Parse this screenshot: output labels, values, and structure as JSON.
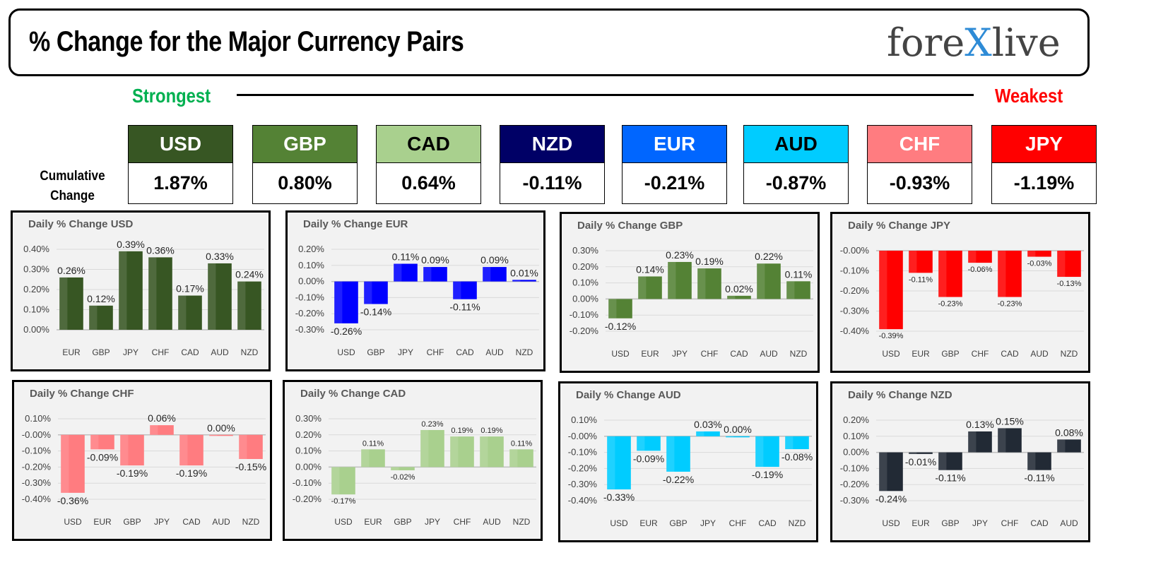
{
  "header": {
    "title": "% Change for the Major Currency Pairs",
    "logo": "forexlive"
  },
  "scale": {
    "strongest": "Strongest",
    "weakest": "Weakest"
  },
  "cumulative": {
    "label": "Cumulative Change",
    "currencies": [
      {
        "code": "USD",
        "value": "1.87%",
        "color": "#375623",
        "text": "#ffffff"
      },
      {
        "code": "GBP",
        "value": "0.80%",
        "color": "#548235",
        "text": "#ffffff"
      },
      {
        "code": "CAD",
        "value": "0.64%",
        "color": "#a9d08e",
        "text": "#000000"
      },
      {
        "code": "NZD",
        "value": "-0.11%",
        "color": "#000066",
        "text": "#ffffff"
      },
      {
        "code": "EUR",
        "value": "-0.21%",
        "color": "#0066ff",
        "text": "#ffffff"
      },
      {
        "code": "AUD",
        "value": "-0.87%",
        "color": "#00ccff",
        "text": "#000000"
      },
      {
        "code": "CHF",
        "value": "-0.93%",
        "color": "#ff7c80",
        "text": "#ffffff"
      },
      {
        "code": "JPY",
        "value": "-1.19%",
        "color": "#ff0000",
        "text": "#ffffff"
      }
    ]
  },
  "chart_data": [
    {
      "type": "bar",
      "title": "Daily % Change USD",
      "color": "#375623",
      "categories": [
        "EUR",
        "GBP",
        "JPY",
        "CHF",
        "CAD",
        "AUD",
        "NZD"
      ],
      "values": [
        0.26,
        0.12,
        0.39,
        0.36,
        0.17,
        0.33,
        0.24
      ],
      "ylim": [
        0,
        0.4
      ],
      "grid": true
    },
    {
      "type": "bar",
      "title": "Daily % Change EUR",
      "color": "#0000ff",
      "categories": [
        "USD",
        "GBP",
        "JPY",
        "CHF",
        "CAD",
        "AUD",
        "NZD"
      ],
      "values": [
        -0.26,
        -0.14,
        0.11,
        0.09,
        -0.11,
        0.09,
        0.01
      ],
      "ylim": [
        -0.3,
        0.2
      ],
      "grid": true
    },
    {
      "type": "bar",
      "title": "Daily % Change GBP",
      "color": "#548235",
      "categories": [
        "USD",
        "EUR",
        "JPY",
        "CHF",
        "CAD",
        "AUD",
        "NZD"
      ],
      "values": [
        -0.12,
        0.14,
        0.23,
        0.19,
        0.02,
        0.22,
        0.11
      ],
      "ylim": [
        -0.2,
        0.3
      ],
      "grid": true
    },
    {
      "type": "bar",
      "title": "Daily % Change JPY",
      "color": "#ff0000",
      "categories": [
        "USD",
        "EUR",
        "GBP",
        "CHF",
        "CAD",
        "AUD",
        "NZD"
      ],
      "values": [
        -0.39,
        -0.11,
        -0.23,
        -0.06,
        -0.23,
        -0.03,
        -0.13
      ],
      "ylim": [
        -0.4,
        0
      ],
      "grid": true
    },
    {
      "type": "bar",
      "title": "Daily % Change CHF",
      "color": "#ff7c80",
      "categories": [
        "USD",
        "EUR",
        "GBP",
        "JPY",
        "CAD",
        "AUD",
        "NZD"
      ],
      "values": [
        -0.36,
        -0.09,
        -0.19,
        0.06,
        -0.19,
        0.0,
        -0.15
      ],
      "ylim": [
        -0.4,
        0.1
      ],
      "grid": true
    },
    {
      "type": "bar",
      "title": "Daily % Change CAD",
      "color": "#a9d08e",
      "categories": [
        "USD",
        "EUR",
        "GBP",
        "JPY",
        "CHF",
        "AUD",
        "NZD"
      ],
      "values": [
        -0.17,
        0.11,
        -0.02,
        0.23,
        0.19,
        0.19,
        0.11
      ],
      "ylim": [
        -0.2,
        0.3
      ],
      "grid": true
    },
    {
      "type": "bar",
      "title": "Daily % Change AUD",
      "color": "#00ccff",
      "categories": [
        "USD",
        "EUR",
        "GBP",
        "JPY",
        "CHF",
        "CAD",
        "NZD"
      ],
      "values": [
        -0.33,
        -0.09,
        -0.22,
        0.03,
        0.0,
        -0.19,
        -0.08
      ],
      "ylim": [
        -0.4,
        0.1
      ],
      "grid": true
    },
    {
      "type": "bar",
      "title": "Daily % Change NZD",
      "color": "#222a35",
      "categories": [
        "USD",
        "EUR",
        "GBP",
        "JPY",
        "CHF",
        "CAD",
        "AUD"
      ],
      "values": [
        -0.24,
        -0.01,
        -0.11,
        0.13,
        0.15,
        -0.11,
        0.08
      ],
      "ylim": [
        -0.3,
        0.2
      ],
      "grid": true
    }
  ]
}
